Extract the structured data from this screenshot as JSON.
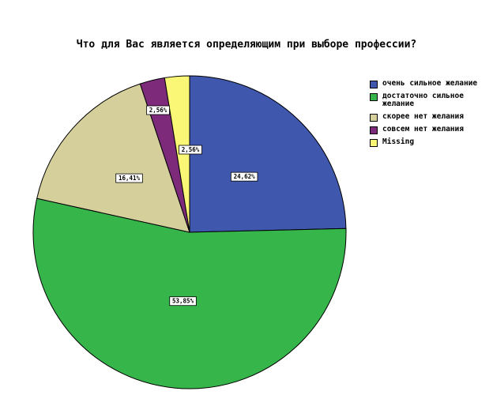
{
  "chart_data": {
    "type": "pie",
    "title": "Что для Вас является определяющим при выборе профессии?",
    "slices": [
      {
        "label": "очень сильное желание",
        "value": 24.62,
        "display": "24,62%",
        "color": "#3f57ad"
      },
      {
        "label": "достаточно сильное желание",
        "value": 53.85,
        "display": "53,85%",
        "color": "#35b54a"
      },
      {
        "label": "скорее нет желания",
        "value": 16.41,
        "display": "16,41%",
        "color": "#d5cf9b"
      },
      {
        "label": "совсем нет желания",
        "value": 2.56,
        "display": "2,56%",
        "color": "#7d2a7b"
      },
      {
        "label": "Missing",
        "value": 2.56,
        "display": "2,56%",
        "color": "#fbf776"
      }
    ],
    "legend_position": "right"
  }
}
